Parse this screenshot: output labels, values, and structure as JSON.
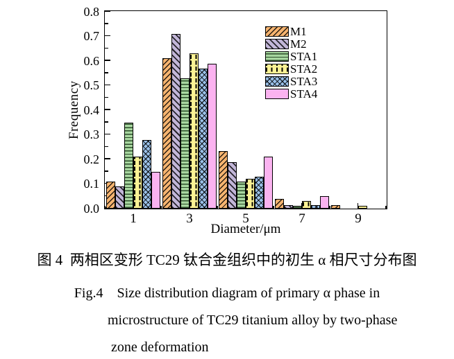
{
  "chart_data": {
    "type": "bar",
    "title": "",
    "xlabel": "Diameter/μm",
    "ylabel": "Frequency",
    "categories": [
      1,
      3,
      5,
      7,
      9
    ],
    "xticks": [
      "1",
      "3",
      "5",
      "7",
      "9"
    ],
    "yticks": [
      "0.0",
      "0.1",
      "0.2",
      "0.3",
      "0.4",
      "0.5",
      "0.6",
      "0.7",
      "0.8"
    ],
    "xlim": [
      0,
      10
    ],
    "ylim": [
      0.0,
      0.8
    ],
    "minor_xticks": [
      0,
      2,
      4,
      6,
      8,
      10
    ],
    "minor_ytick_step": 0.05,
    "grid": false,
    "legend_position": "top-right-inside",
    "series": [
      {
        "name": "M1",
        "color": "#F6B470",
        "pattern": "diag-forward",
        "values": [
          0.11,
          0.61,
          0.235,
          0.04,
          0.013
        ]
      },
      {
        "name": "M2",
        "color": "#C2B6D8",
        "pattern": "diag-back",
        "values": [
          0.09,
          0.71,
          0.19,
          0.015,
          0
        ]
      },
      {
        "name": "STA1",
        "color": "#A8D7A0",
        "pattern": "horizontal",
        "values": [
          0.35,
          0.53,
          0.11,
          0.01,
          0
        ]
      },
      {
        "name": "STA2",
        "color": "#FBF294",
        "pattern": "dashed-vertical",
        "values": [
          0.21,
          0.63,
          0.12,
          0.03,
          0.01
        ]
      },
      {
        "name": "STA3",
        "color": "#9CC2EA",
        "pattern": "crosshatch",
        "values": [
          0.28,
          0.57,
          0.13,
          0.015,
          0
        ]
      },
      {
        "name": "STA4",
        "color": "#FBB3F0",
        "pattern": "solid",
        "values": [
          0.15,
          0.59,
          0.21,
          0.05,
          0
        ]
      }
    ]
  },
  "caption": {
    "line_cn": "图 4  两相区变形 TC29 钛合金组织中的初生 α 相尺寸分布图",
    "line_en_1": "Fig.4    Size distribution diagram of primary α phase in",
    "line_en_2": "microstructure of TC29 titanium alloy by two-phase",
    "line_en_3": "zone deformation"
  }
}
